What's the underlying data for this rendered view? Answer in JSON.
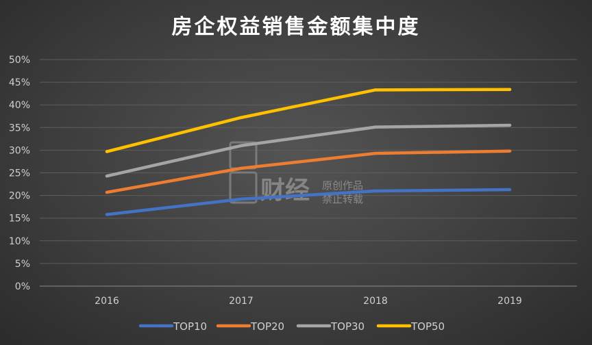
{
  "chart_data": {
    "type": "line",
    "title": "房企权益销售金额集中度",
    "categories": [
      "2016",
      "2017",
      "2018",
      "2019"
    ],
    "y_tick_labels": [
      "0%",
      "5%",
      "10%",
      "15%",
      "20%",
      "25%",
      "30%",
      "35%",
      "40%",
      "45%",
      "50%"
    ],
    "ylim": [
      0,
      50
    ],
    "grid": true,
    "legend_position": "bottom",
    "series": [
      {
        "name": "TOP10",
        "color": "#4472c4",
        "values": [
          15.8,
          19.2,
          21.0,
          21.3
        ]
      },
      {
        "name": "TOP20",
        "color": "#ed7d31",
        "values": [
          20.7,
          26.0,
          29.3,
          29.8
        ]
      },
      {
        "name": "TOP30",
        "color": "#a5a5a5",
        "values": [
          24.3,
          31.0,
          35.1,
          35.5
        ]
      },
      {
        "name": "TOP50",
        "color": "#ffc000",
        "values": [
          29.7,
          37.2,
          43.3,
          43.4
        ]
      }
    ]
  },
  "watermark": {
    "brand": "财经",
    "line1": "原创作品",
    "line2": "禁止转载"
  }
}
